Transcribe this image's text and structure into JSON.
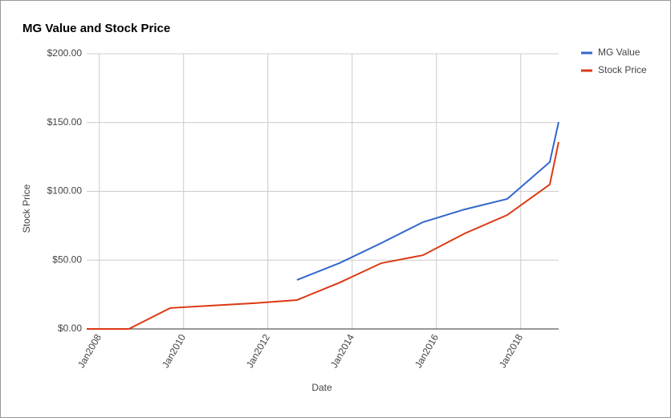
{
  "chart_data": {
    "type": "line",
    "title": "MG Value and Stock Price",
    "x_label": "Date",
    "y_label": "Stock Price",
    "x": [
      2007.7,
      2008.7,
      2009.68,
      2010.63,
      2011.68,
      2012.69,
      2013.71,
      2014.69,
      2015.68,
      2016.67,
      2017.68,
      2018.69,
      2018.9
    ],
    "series": [
      {
        "name": "MG Value",
        "color": "#3366cc",
        "values": [
          null,
          null,
          null,
          null,
          null,
          35.6,
          48,
          62.4,
          77.6,
          86.9,
          94.5,
          121.3,
          150.4
        ]
      },
      {
        "name": "Stock Price",
        "color": "#dc3912",
        "values": [
          0,
          0,
          15.2,
          16.9,
          18.7,
          21,
          33.8,
          47.8,
          53.6,
          69.4,
          82.8,
          105,
          135.9
        ]
      }
    ],
    "xlim": [
      2007.7,
      2018.9
    ],
    "xticks": [
      {
        "value": 2008,
        "label": "Jan2008"
      },
      {
        "value": 2010,
        "label": "Jan2010"
      },
      {
        "value": 2012,
        "label": "Jan2012"
      },
      {
        "value": 2014,
        "label": "Jan2014"
      },
      {
        "value": 2016,
        "label": "Jan2016"
      },
      {
        "value": 2018,
        "label": "Jan2018"
      }
    ],
    "ylim": [
      0,
      200
    ],
    "yticks": [
      {
        "value": 0,
        "label": "$0.00"
      },
      {
        "value": 50,
        "label": "$50.00"
      },
      {
        "value": 100,
        "label": "$100.00"
      },
      {
        "value": 150,
        "label": "$150.00"
      },
      {
        "value": 200,
        "label": "$200.00"
      }
    ],
    "grid": true,
    "legend": "right"
  }
}
